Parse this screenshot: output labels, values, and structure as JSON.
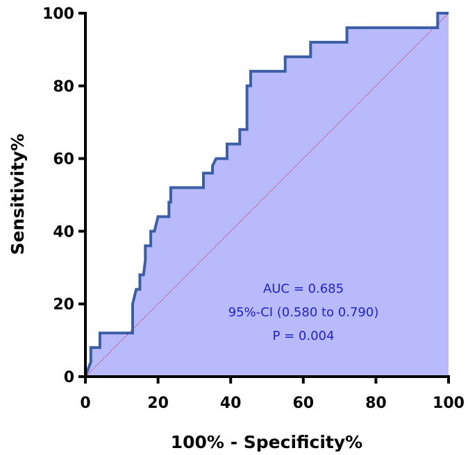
{
  "chart_data": {
    "type": "line",
    "title": "",
    "xlabel": "100% - Specificity%",
    "ylabel": "Sensitivity%",
    "xlim": [
      0,
      100
    ],
    "ylim": [
      0,
      100
    ],
    "xticks": [
      0,
      20,
      40,
      60,
      80,
      100
    ],
    "yticks": [
      0,
      20,
      40,
      60,
      80,
      100
    ],
    "grid": false,
    "legend": "none",
    "series": [
      {
        "values_xy": [
          [
            0,
            0
          ],
          [
            0.5,
            1.5
          ],
          [
            1.5,
            4
          ],
          [
            1.5,
            8
          ],
          [
            4,
            8
          ],
          [
            4,
            12
          ],
          [
            13,
            12
          ],
          [
            13,
            20
          ],
          [
            13.5,
            22
          ],
          [
            14,
            24
          ],
          [
            15,
            24
          ],
          [
            15,
            28
          ],
          [
            16,
            28
          ],
          [
            16.5,
            32
          ],
          [
            16.5,
            36
          ],
          [
            18,
            36
          ],
          [
            18,
            40
          ],
          [
            19,
            40
          ],
          [
            19.5,
            42
          ],
          [
            20,
            44
          ],
          [
            23,
            44
          ],
          [
            23,
            48
          ],
          [
            23.5,
            48
          ],
          [
            23.5,
            52
          ],
          [
            32.5,
            52
          ],
          [
            32.5,
            56
          ],
          [
            35,
            56
          ],
          [
            35,
            58
          ],
          [
            36,
            60
          ],
          [
            39,
            60
          ],
          [
            39,
            64
          ],
          [
            42.5,
            64
          ],
          [
            42.5,
            68
          ],
          [
            44.5,
            68
          ],
          [
            44.5,
            80
          ],
          [
            45.5,
            80
          ],
          [
            45.5,
            84
          ],
          [
            55,
            84
          ],
          [
            55,
            88
          ],
          [
            62,
            88
          ],
          [
            62,
            92
          ],
          [
            72,
            92
          ],
          [
            72,
            96
          ],
          [
            97,
            96
          ],
          [
            97,
            100
          ],
          [
            100,
            100
          ]
        ]
      },
      {
        "values_xy": [
          [
            0,
            0
          ],
          [
            100,
            100
          ]
        ]
      }
    ],
    "annotations": [
      "AUC = 0.685",
      "95%-CI (0.580 to 0.790)",
      "P = 0.004"
    ],
    "colors": {
      "curve": "#3b5ea6",
      "fill": "#b9bafb",
      "reference": "#cc3355",
      "annotation": "#1f1fd6",
      "axis": "#000000"
    }
  }
}
